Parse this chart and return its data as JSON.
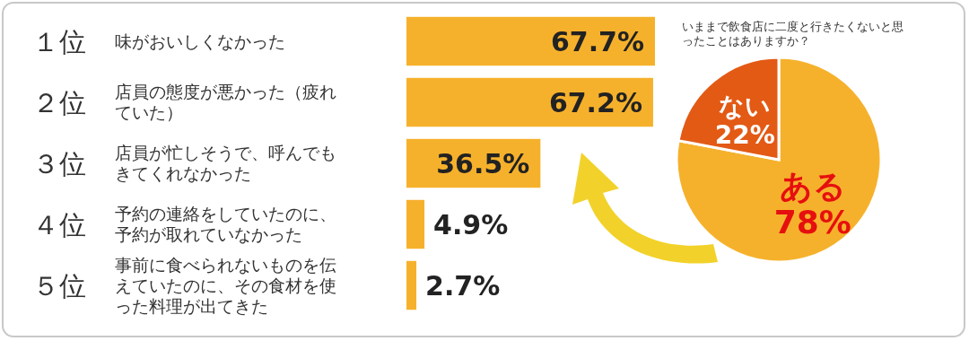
{
  "chart_data": [
    {
      "type": "bar",
      "orientation": "horizontal",
      "categories": [
        "味がおいしくなかった",
        "店員の態度が悪かった（疲れていた）",
        "店員が忙しそうで、呼んでもきてくれなかった",
        "予約の連絡をしていたのに、予約が取れていなかった",
        "事前に食べられないものを伝えていたのに、その食材を使った料理が出てきた"
      ],
      "values": [
        67.7,
        67.2,
        36.5,
        4.9,
        2.7
      ],
      "value_labels": [
        "67.7%",
        "67.2%",
        "36.5%",
        "4.9%",
        "2.7%"
      ],
      "color": "#f6b12c",
      "annotations": [
        "１位",
        "２位",
        "３位",
        "４位",
        "５位"
      ]
    },
    {
      "type": "pie",
      "title": "いままで飲食店に二度と行きたくないと思ったことはありますか？",
      "categories": [
        "ある",
        "ない"
      ],
      "values": [
        78,
        22
      ],
      "value_labels": [
        "78%",
        "22%"
      ],
      "colors": [
        "#f6b12c",
        "#e35a15"
      ]
    }
  ]
}
